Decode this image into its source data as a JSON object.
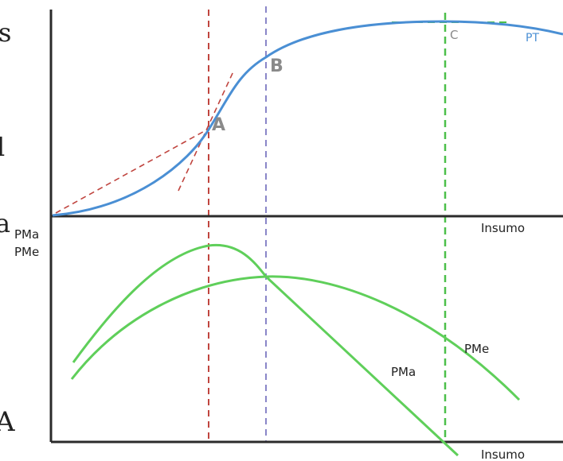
{
  "colors": {
    "axis": "#2b2b2b",
    "total_product": "#4a8fd4",
    "average_marginal": "#5fcf5a",
    "line_a": "#c0453f",
    "line_b": "#8a86c8",
    "line_c": "#4cbf4a",
    "point_label": "#8a8a8a",
    "text": "#222222"
  },
  "top_panel": {
    "x_axis_label": "Insumo",
    "curve_label": "PT",
    "points": [
      {
        "id": "A",
        "label": "A"
      },
      {
        "id": "B",
        "label": "B"
      },
      {
        "id": "C",
        "label": "C"
      }
    ]
  },
  "bottom_panel": {
    "x_axis_label": "Insumo",
    "y_axis_labels": [
      "PMa",
      "PMe"
    ],
    "curve_labels": {
      "marginal": "PMa",
      "average": "PMe"
    }
  },
  "left_cropped_text": [
    "s",
    "l",
    "a",
    "A"
  ]
}
